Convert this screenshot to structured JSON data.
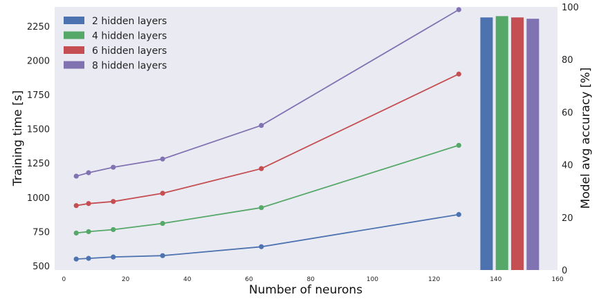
{
  "chart_data": {
    "type": "line",
    "xlabel": "Number of neurons",
    "ylabel": "Training time [s]",
    "y2label": "Model avg accuracy [%]",
    "xlim": [
      -3,
      160
    ],
    "ylim": [
      470,
      2390
    ],
    "y2lim": [
      0,
      100
    ],
    "x_ticks": [
      0,
      20,
      40,
      60,
      80,
      100,
      120,
      140,
      160
    ],
    "y_ticks": [
      500,
      750,
      1000,
      1250,
      1500,
      1750,
      2000,
      2250
    ],
    "y2_ticks": [
      0,
      20,
      40,
      60,
      80,
      100
    ],
    "grid": false,
    "legend_position": "top-left",
    "x": [
      4,
      8,
      16,
      32,
      64,
      128
    ],
    "series": [
      {
        "name": "2 hidden layers",
        "color": "#4c72b0",
        "values": [
          550,
          555,
          565,
          575,
          640,
          875
        ],
        "accuracy": 96
      },
      {
        "name": "4 hidden layers",
        "color": "#55a868",
        "values": [
          740,
          750,
          765,
          810,
          925,
          1380
        ],
        "accuracy": 96.5
      },
      {
        "name": "6 hidden layers",
        "color": "#c44e52",
        "values": [
          940,
          955,
          970,
          1030,
          1210,
          1900
        ],
        "accuracy": 96
      },
      {
        "name": "8 hidden layers",
        "color": "#8172b2",
        "values": [
          1155,
          1180,
          1220,
          1280,
          1525,
          2370
        ],
        "accuracy": 95.5
      }
    ],
    "accuracy_bars_x": [
      137,
      142,
      147,
      152
    ]
  }
}
